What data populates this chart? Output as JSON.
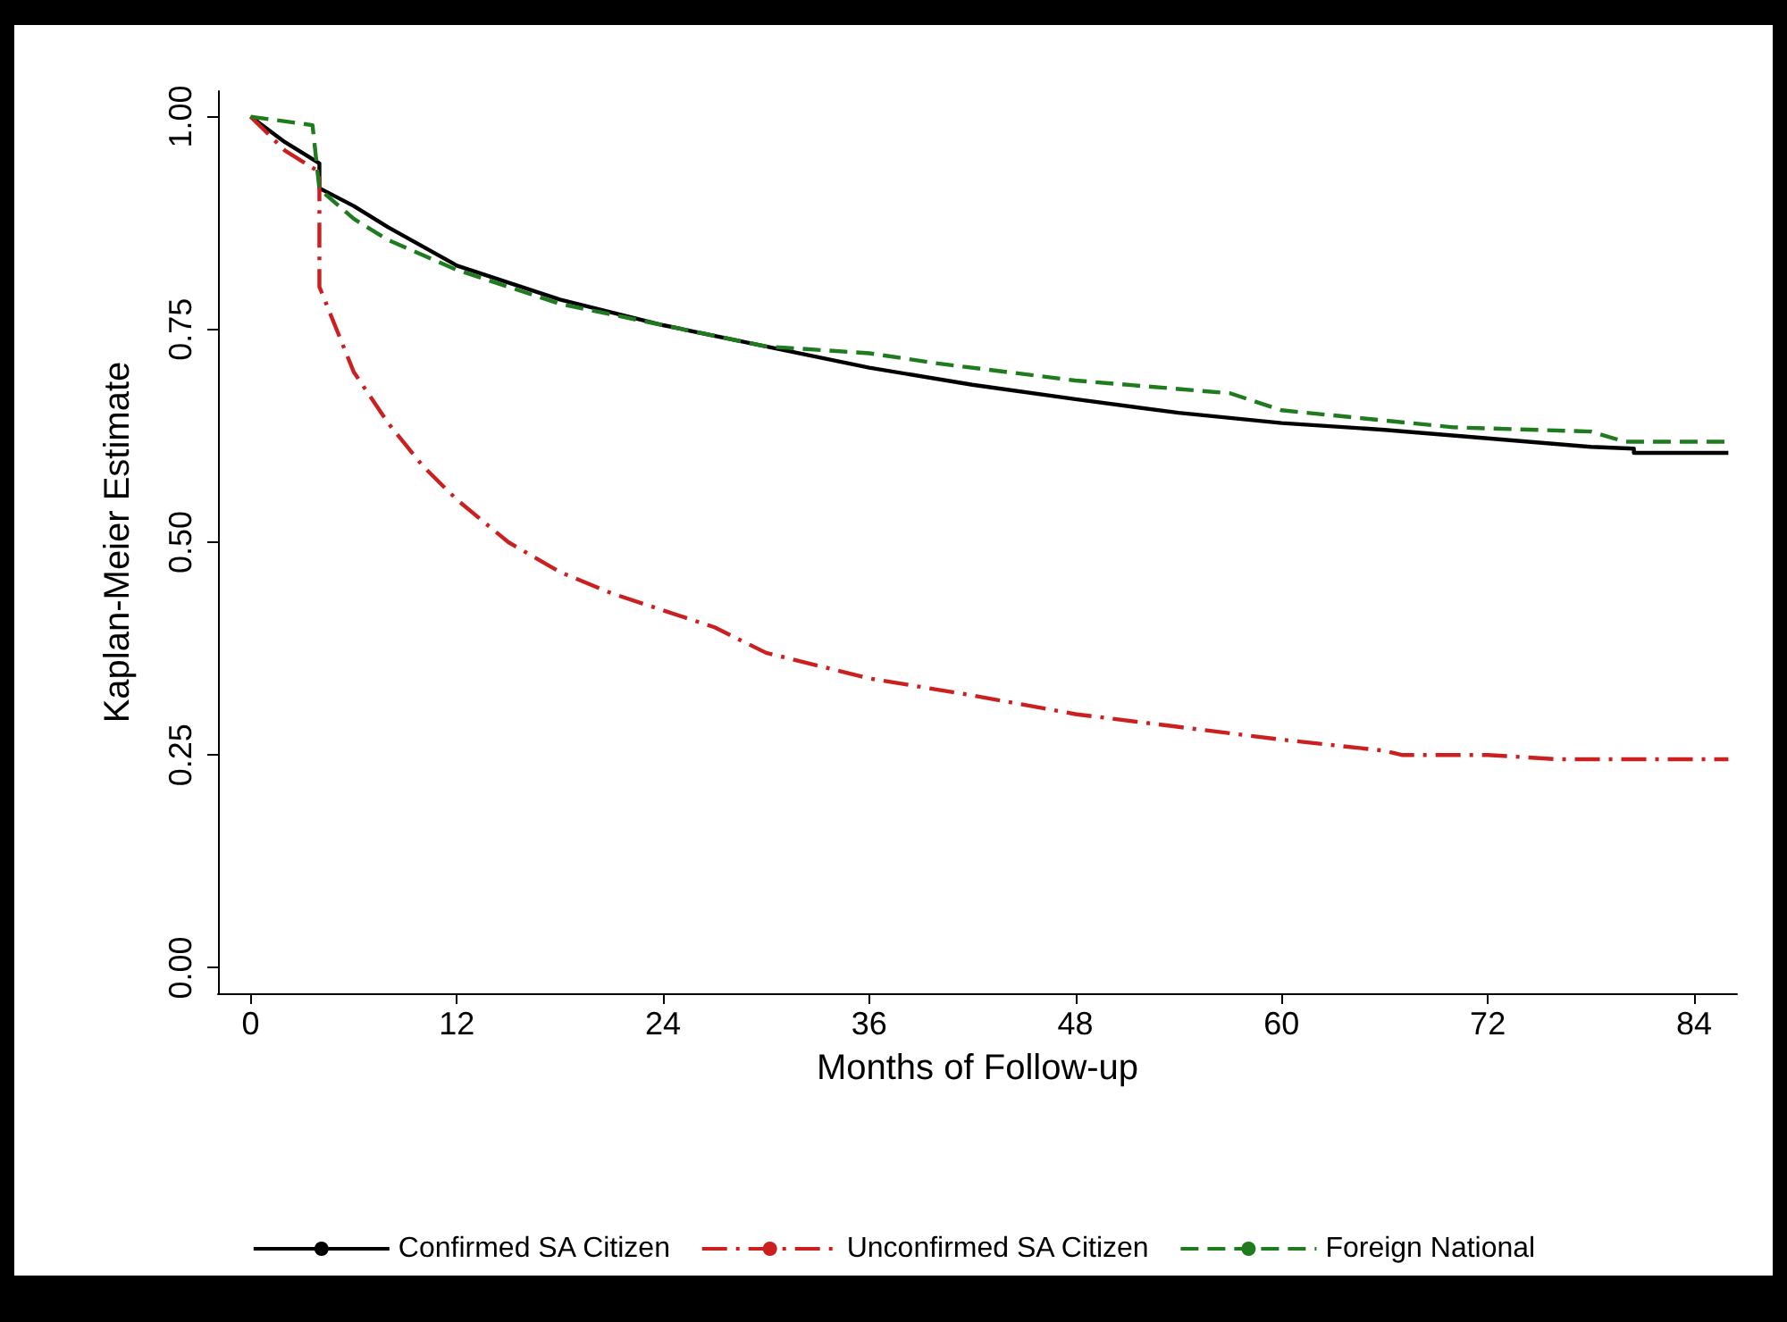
{
  "chart_data": {
    "type": "line",
    "xlabel": "Months of Follow-up",
    "ylabel": "Kaplan-Meier Estimate",
    "xlim": [
      -1.9,
      86.5
    ],
    "xticks": [
      0,
      12,
      24,
      36,
      48,
      60,
      72,
      84
    ],
    "ylim": [
      -0.03,
      1.03
    ],
    "yticks": [
      {
        "value": 0,
        "label": "0.00"
      },
      {
        "value": 0.25,
        "label": "0.25"
      },
      {
        "value": 0.5,
        "label": "0.50"
      },
      {
        "value": 0.75,
        "label": "0.75"
      },
      {
        "value": 1,
        "label": "1.00"
      }
    ],
    "grid": false,
    "legend": "bottom",
    "marker": "none",
    "series": [
      {
        "name": "Confirmed SA Citizen",
        "color": "#000000",
        "line_style": "solid",
        "x": [
          0,
          2,
          4,
          4,
          6,
          8,
          12,
          18,
          24,
          30,
          36,
          42,
          48,
          54,
          60,
          66,
          72,
          78,
          80.5,
          80.5,
          86
        ],
        "values": [
          1,
          0.97,
          0.945,
          0.916,
          0.895,
          0.87,
          0.825,
          0.785,
          0.755,
          0.73,
          0.705,
          0.685,
          0.668,
          0.652,
          0.64,
          0.632,
          0.622,
          0.612,
          0.61,
          0.605,
          0.605
        ]
      },
      {
        "name": "Unconfirmed SA Citizen",
        "color": "#cc1f1f",
        "line_style": "dashdot",
        "x": [
          0,
          2,
          4,
          4,
          5,
          6,
          8,
          10,
          12,
          15,
          18,
          21,
          24,
          27,
          30,
          36,
          42,
          48,
          54,
          60,
          66,
          67,
          72,
          76,
          86
        ],
        "values": [
          1,
          0.96,
          0.935,
          0.8,
          0.75,
          0.7,
          0.64,
          0.59,
          0.55,
          0.5,
          0.465,
          0.44,
          0.42,
          0.4,
          0.37,
          0.34,
          0.32,
          0.298,
          0.283,
          0.268,
          0.255,
          0.25,
          0.25,
          0.245,
          0.245
        ]
      },
      {
        "name": "Foreign National",
        "color": "#1e7b1e",
        "line_style": "dashed",
        "x": [
          0,
          3.6,
          4,
          6,
          8,
          12,
          18,
          24,
          30,
          36,
          40,
          48,
          54,
          57,
          60,
          66,
          70,
          78,
          80,
          86
        ],
        "values": [
          1,
          0.99,
          0.915,
          0.88,
          0.855,
          0.82,
          0.78,
          0.755,
          0.73,
          0.722,
          0.71,
          0.69,
          0.68,
          0.675,
          0.655,
          0.643,
          0.635,
          0.63,
          0.618,
          0.618
        ]
      }
    ]
  }
}
